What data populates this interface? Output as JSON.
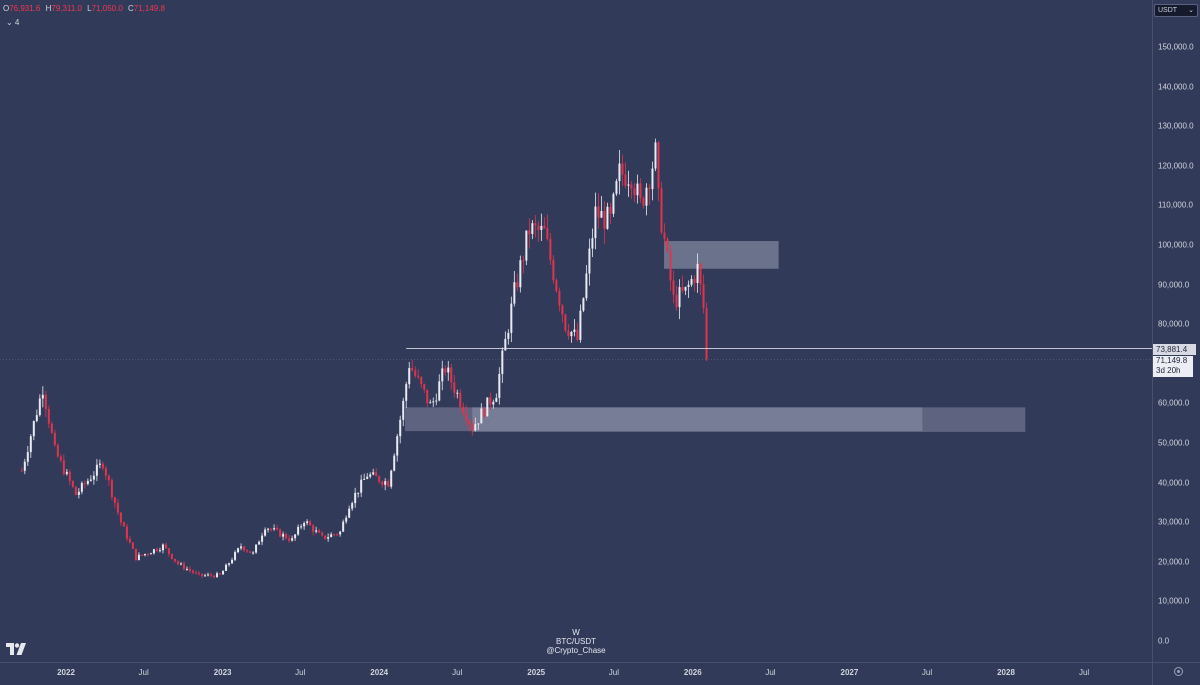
{
  "ohlc": {
    "o_label": "O",
    "o": "76,931.6",
    "h_label": "H",
    "h": "79,311.0",
    "l_label": "L",
    "l": "71,050.0",
    "c_label": "C",
    "c": "71,149.8"
  },
  "indicators_toggle": "⌄ 4",
  "currency_button": {
    "label": "USDT",
    "chevron": "⌄"
  },
  "price_axis": {
    "ticks": [
      "150,000.0",
      "140,000.0",
      "130,000.0",
      "120,000.0",
      "110,000.0",
      "100,000.0",
      "90,000.0",
      "80,000.0",
      "60,000.0",
      "50,000.0",
      "40,000.0",
      "30,000.0",
      "20,000.0",
      "10,000.0",
      "0.0"
    ],
    "level_label": "73,881.4",
    "last_price": "71,149.8",
    "countdown": "3d 20h"
  },
  "time_axis": {
    "labels": [
      "2022",
      "Jul",
      "2023",
      "Jul",
      "2024",
      "Jul",
      "2025",
      "Jul",
      "2026",
      "Jul",
      "2027",
      "Jul",
      "2028",
      "Jul"
    ]
  },
  "watermark": {
    "interval": "W",
    "symbol": "BTC/USDT",
    "author": "@Crypto_Chase"
  },
  "colors": {
    "background": "#323a5a",
    "up": "#e9ebf2",
    "down": "#e0344e",
    "zone": "#9ba0b4",
    "level_line": "#d8dae3"
  },
  "chart_data": {
    "type": "candlestick",
    "interval": "W",
    "symbol": "BTC/USDT",
    "ylim": [
      0,
      160000
    ],
    "xlim": [
      "2021-09-15",
      "2028-10-15"
    ],
    "horizontal_level": 73881.4,
    "last_price": 71149.8,
    "zones": [
      {
        "from": "2025-10-26",
        "to": "2026-07-20",
        "low": 94000,
        "high": 101000
      },
      {
        "from": "2024-03-01",
        "to": "2027-06-20",
        "low": 53000,
        "high": 59000
      },
      {
        "from": "2024-08-05",
        "to": "2028-02-15",
        "low": 52800,
        "high": 59000
      }
    ],
    "path": [
      [
        "2021-09-20",
        43000
      ],
      [
        "2021-11-08",
        64000
      ],
      [
        "2021-12-06",
        48000
      ],
      [
        "2022-01-24",
        37000
      ],
      [
        "2022-03-28",
        45000
      ],
      [
        "2022-05-09",
        30000
      ],
      [
        "2022-06-13",
        21000
      ],
      [
        "2022-08-15",
        24000
      ],
      [
        "2022-09-19",
        19500
      ],
      [
        "2022-11-07",
        16500
      ],
      [
        "2022-12-26",
        16600
      ],
      [
        "2023-02-13",
        24000
      ],
      [
        "2023-03-13",
        22000
      ],
      [
        "2023-04-10",
        29000
      ],
      [
        "2023-06-12",
        25500
      ],
      [
        "2023-07-10",
        30500
      ],
      [
        "2023-08-21",
        26000
      ],
      [
        "2023-10-02",
        27500
      ],
      [
        "2023-10-23",
        34500
      ],
      [
        "2023-12-04",
        42000
      ],
      [
        "2024-01-22",
        40000
      ],
      [
        "2024-02-26",
        60000
      ],
      [
        "2024-03-11",
        70000
      ],
      [
        "2024-05-01",
        59000
      ],
      [
        "2024-06-03",
        69000
      ],
      [
        "2024-08-05",
        54000
      ],
      [
        "2024-09-30",
        63000
      ],
      [
        "2024-11-11",
        88000
      ],
      [
        "2024-12-16",
        104000
      ],
      [
        "2025-01-20",
        103000
      ],
      [
        "2025-03-10",
        80000
      ],
      [
        "2025-04-07",
        76000
      ],
      [
        "2025-05-19",
        108000
      ],
      [
        "2025-06-23",
        106000
      ],
      [
        "2025-07-14",
        118000
      ],
      [
        "2025-08-11",
        118000
      ],
      [
        "2025-09-01",
        110000
      ],
      [
        "2025-10-06",
        123000
      ],
      [
        "2025-10-13",
        111000
      ],
      [
        "2025-11-17",
        86000
      ],
      [
        "2025-12-15",
        88000
      ],
      [
        "2026-01-12",
        94000
      ],
      [
        "2026-01-26",
        84000
      ],
      [
        "2026-02-02",
        71149.8
      ]
    ]
  }
}
